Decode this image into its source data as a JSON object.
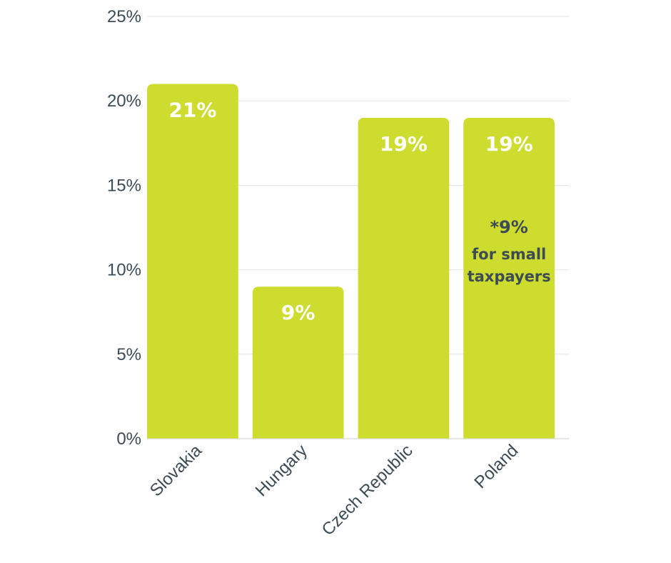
{
  "chart_data": {
    "type": "bar",
    "categories": [
      "Slovakia",
      "Hungary",
      "Czech Republic",
      "Poland"
    ],
    "values": [
      21,
      9,
      19,
      19
    ],
    "value_labels": [
      "21%",
      "9%",
      "19%",
      "19%"
    ],
    "ylim": [
      0,
      25
    ],
    "y_ticks": [
      0,
      5,
      10,
      15,
      20,
      25
    ],
    "y_tick_labels": [
      "0%",
      "5%",
      "10%",
      "15%",
      "20%",
      "25%"
    ],
    "grid": true,
    "legend": "none",
    "bar_color": "#cddc2e",
    "annotation": {
      "category": "Poland",
      "main": "*9%",
      "lines": [
        "for small",
        "taxpayers"
      ]
    }
  }
}
